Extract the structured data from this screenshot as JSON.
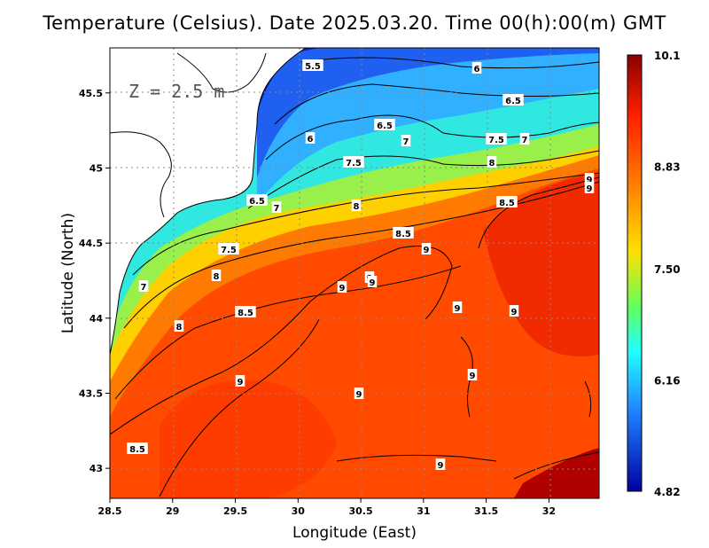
{
  "title": "Temperature (Celsius). Date 2025.03.20. Time 00(h):00(m) GMT",
  "depth_label": "Z = 2.5 m",
  "x_axis": {
    "label": "Longitude (East)",
    "ticks": [
      "28.5",
      "29",
      "29.5",
      "30",
      "30.5",
      "31",
      "31.5",
      "32"
    ],
    "range": [
      28.5,
      32.4
    ]
  },
  "y_axis": {
    "label": "Latitude (North)",
    "ticks": [
      "43",
      "43.5",
      "44",
      "44.5",
      "45",
      "45.5"
    ],
    "range": [
      42.8,
      45.8
    ]
  },
  "colorbar": {
    "labels": [
      "10.1",
      "8.83",
      "7.50",
      "6.16",
      "4.82"
    ],
    "colors": [
      "#8b0000",
      "#ff4000",
      "#ffa500",
      "#ffff30",
      "#30ffd0",
      "#30c0ff",
      "#1060ff",
      "#0000a0"
    ]
  },
  "contour_labels": [
    "5.5",
    "6",
    "6.5",
    "6.5",
    "7",
    "7",
    "7.5",
    "6",
    "6.5",
    "7.5",
    "7",
    "8",
    "8",
    "8.5",
    "8.5",
    "9",
    "9",
    "9",
    "9",
    "9",
    "9",
    "9",
    "9",
    "9",
    "9",
    "9",
    "8.5",
    "7.5",
    "8",
    "7",
    "8.5",
    "8",
    "9"
  ],
  "grid": "dotted"
}
